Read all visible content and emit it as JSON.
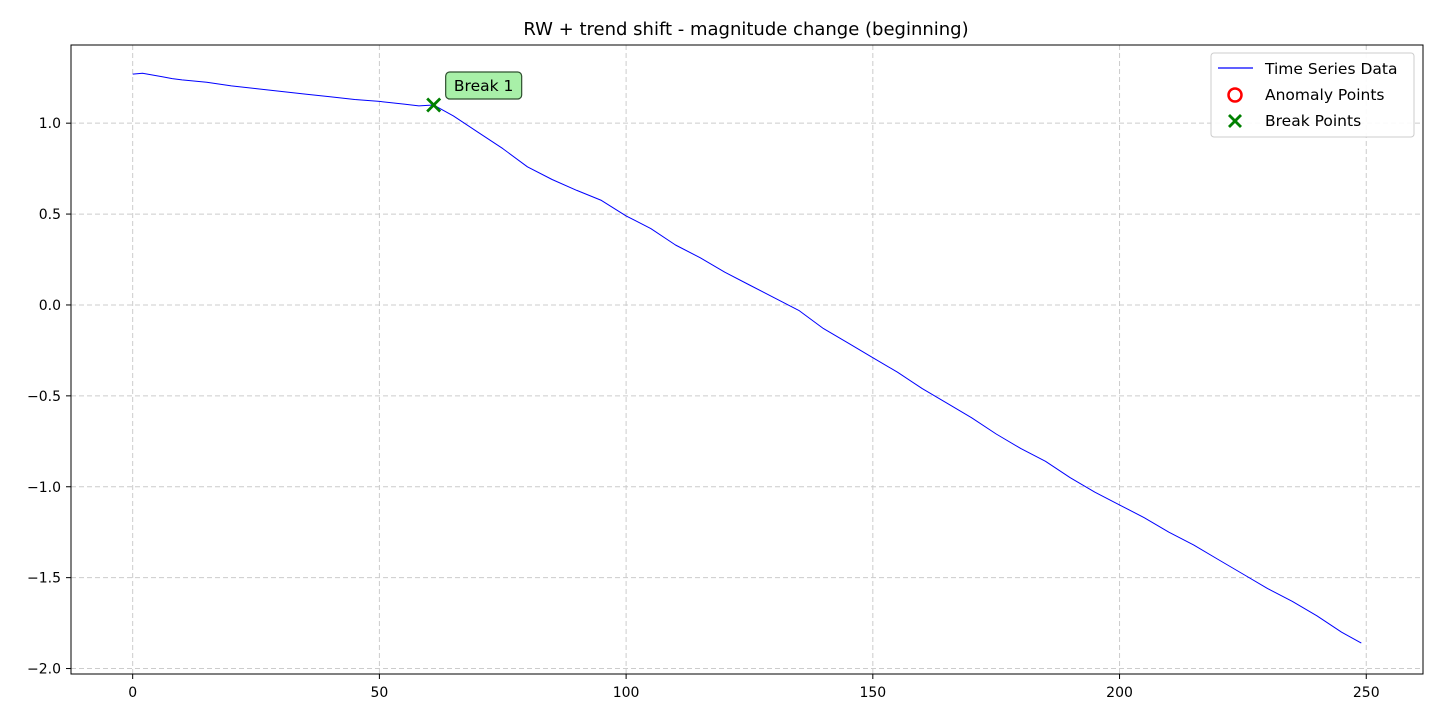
{
  "chart_data": {
    "type": "line",
    "title": "RW + trend shift - magnitude change (beginning)",
    "xlabel": "",
    "ylabel": "",
    "xlim": [
      -12.5,
      261.5
    ],
    "ylim": [
      -2.03,
      1.43
    ],
    "grid": true,
    "x_ticks": [
      0,
      50,
      100,
      150,
      200,
      250
    ],
    "x_tick_labels": [
      "0",
      "50",
      "100",
      "150",
      "200",
      "250"
    ],
    "y_ticks": [
      1.0,
      0.5,
      0.0,
      -0.5,
      -1.0,
      -1.5,
      -2.0
    ],
    "y_tick_labels": [
      "1.0",
      "0.5",
      "0.0",
      "−0.5",
      "−1.0",
      "−1.5",
      "−2.0"
    ],
    "legend": {
      "placement": "top-right",
      "entries": [
        {
          "label": "Time Series Data",
          "marker": "line",
          "color": "#0000ff"
        },
        {
          "label": "Anomaly Points",
          "marker": "circle",
          "color": "#ff0000"
        },
        {
          "label": "Break Points",
          "marker": "x",
          "color": "#008000"
        }
      ]
    },
    "series": [
      {
        "name": "Time Series Data",
        "color": "#0000ff",
        "x": [
          0,
          2,
          4,
          6,
          8,
          10,
          15,
          20,
          25,
          30,
          35,
          40,
          45,
          50,
          55,
          58,
          61,
          65,
          70,
          75,
          80,
          85,
          90,
          95,
          100,
          105,
          110,
          115,
          120,
          125,
          130,
          135,
          140,
          145,
          150,
          155,
          160,
          165,
          170,
          175,
          180,
          185,
          190,
          195,
          200,
          205,
          210,
          215,
          220,
          225,
          230,
          235,
          240,
          245,
          249
        ],
        "y": [
          1.27,
          1.275,
          1.265,
          1.255,
          1.245,
          1.238,
          1.225,
          1.205,
          1.19,
          1.175,
          1.16,
          1.145,
          1.13,
          1.12,
          1.105,
          1.095,
          1.1,
          1.04,
          0.95,
          0.86,
          0.76,
          0.69,
          0.63,
          0.575,
          0.49,
          0.42,
          0.33,
          0.26,
          0.18,
          0.11,
          0.04,
          -0.03,
          -0.13,
          -0.21,
          -0.29,
          -0.37,
          -0.46,
          -0.54,
          -0.62,
          -0.71,
          -0.79,
          -0.86,
          -0.95,
          -1.03,
          -1.1,
          -1.17,
          -1.25,
          -1.32,
          -1.4,
          -1.48,
          -1.56,
          -1.63,
          -1.71,
          -1.8,
          -1.86
        ]
      }
    ],
    "anomaly_points": [],
    "break_points": [
      {
        "x": 61,
        "y": 1.1,
        "label": "Break 1"
      }
    ],
    "colors": {
      "annotation_fill": "#a8f0a8",
      "annotation_border": "#2f4f2f",
      "grid": "#cccccc"
    }
  }
}
